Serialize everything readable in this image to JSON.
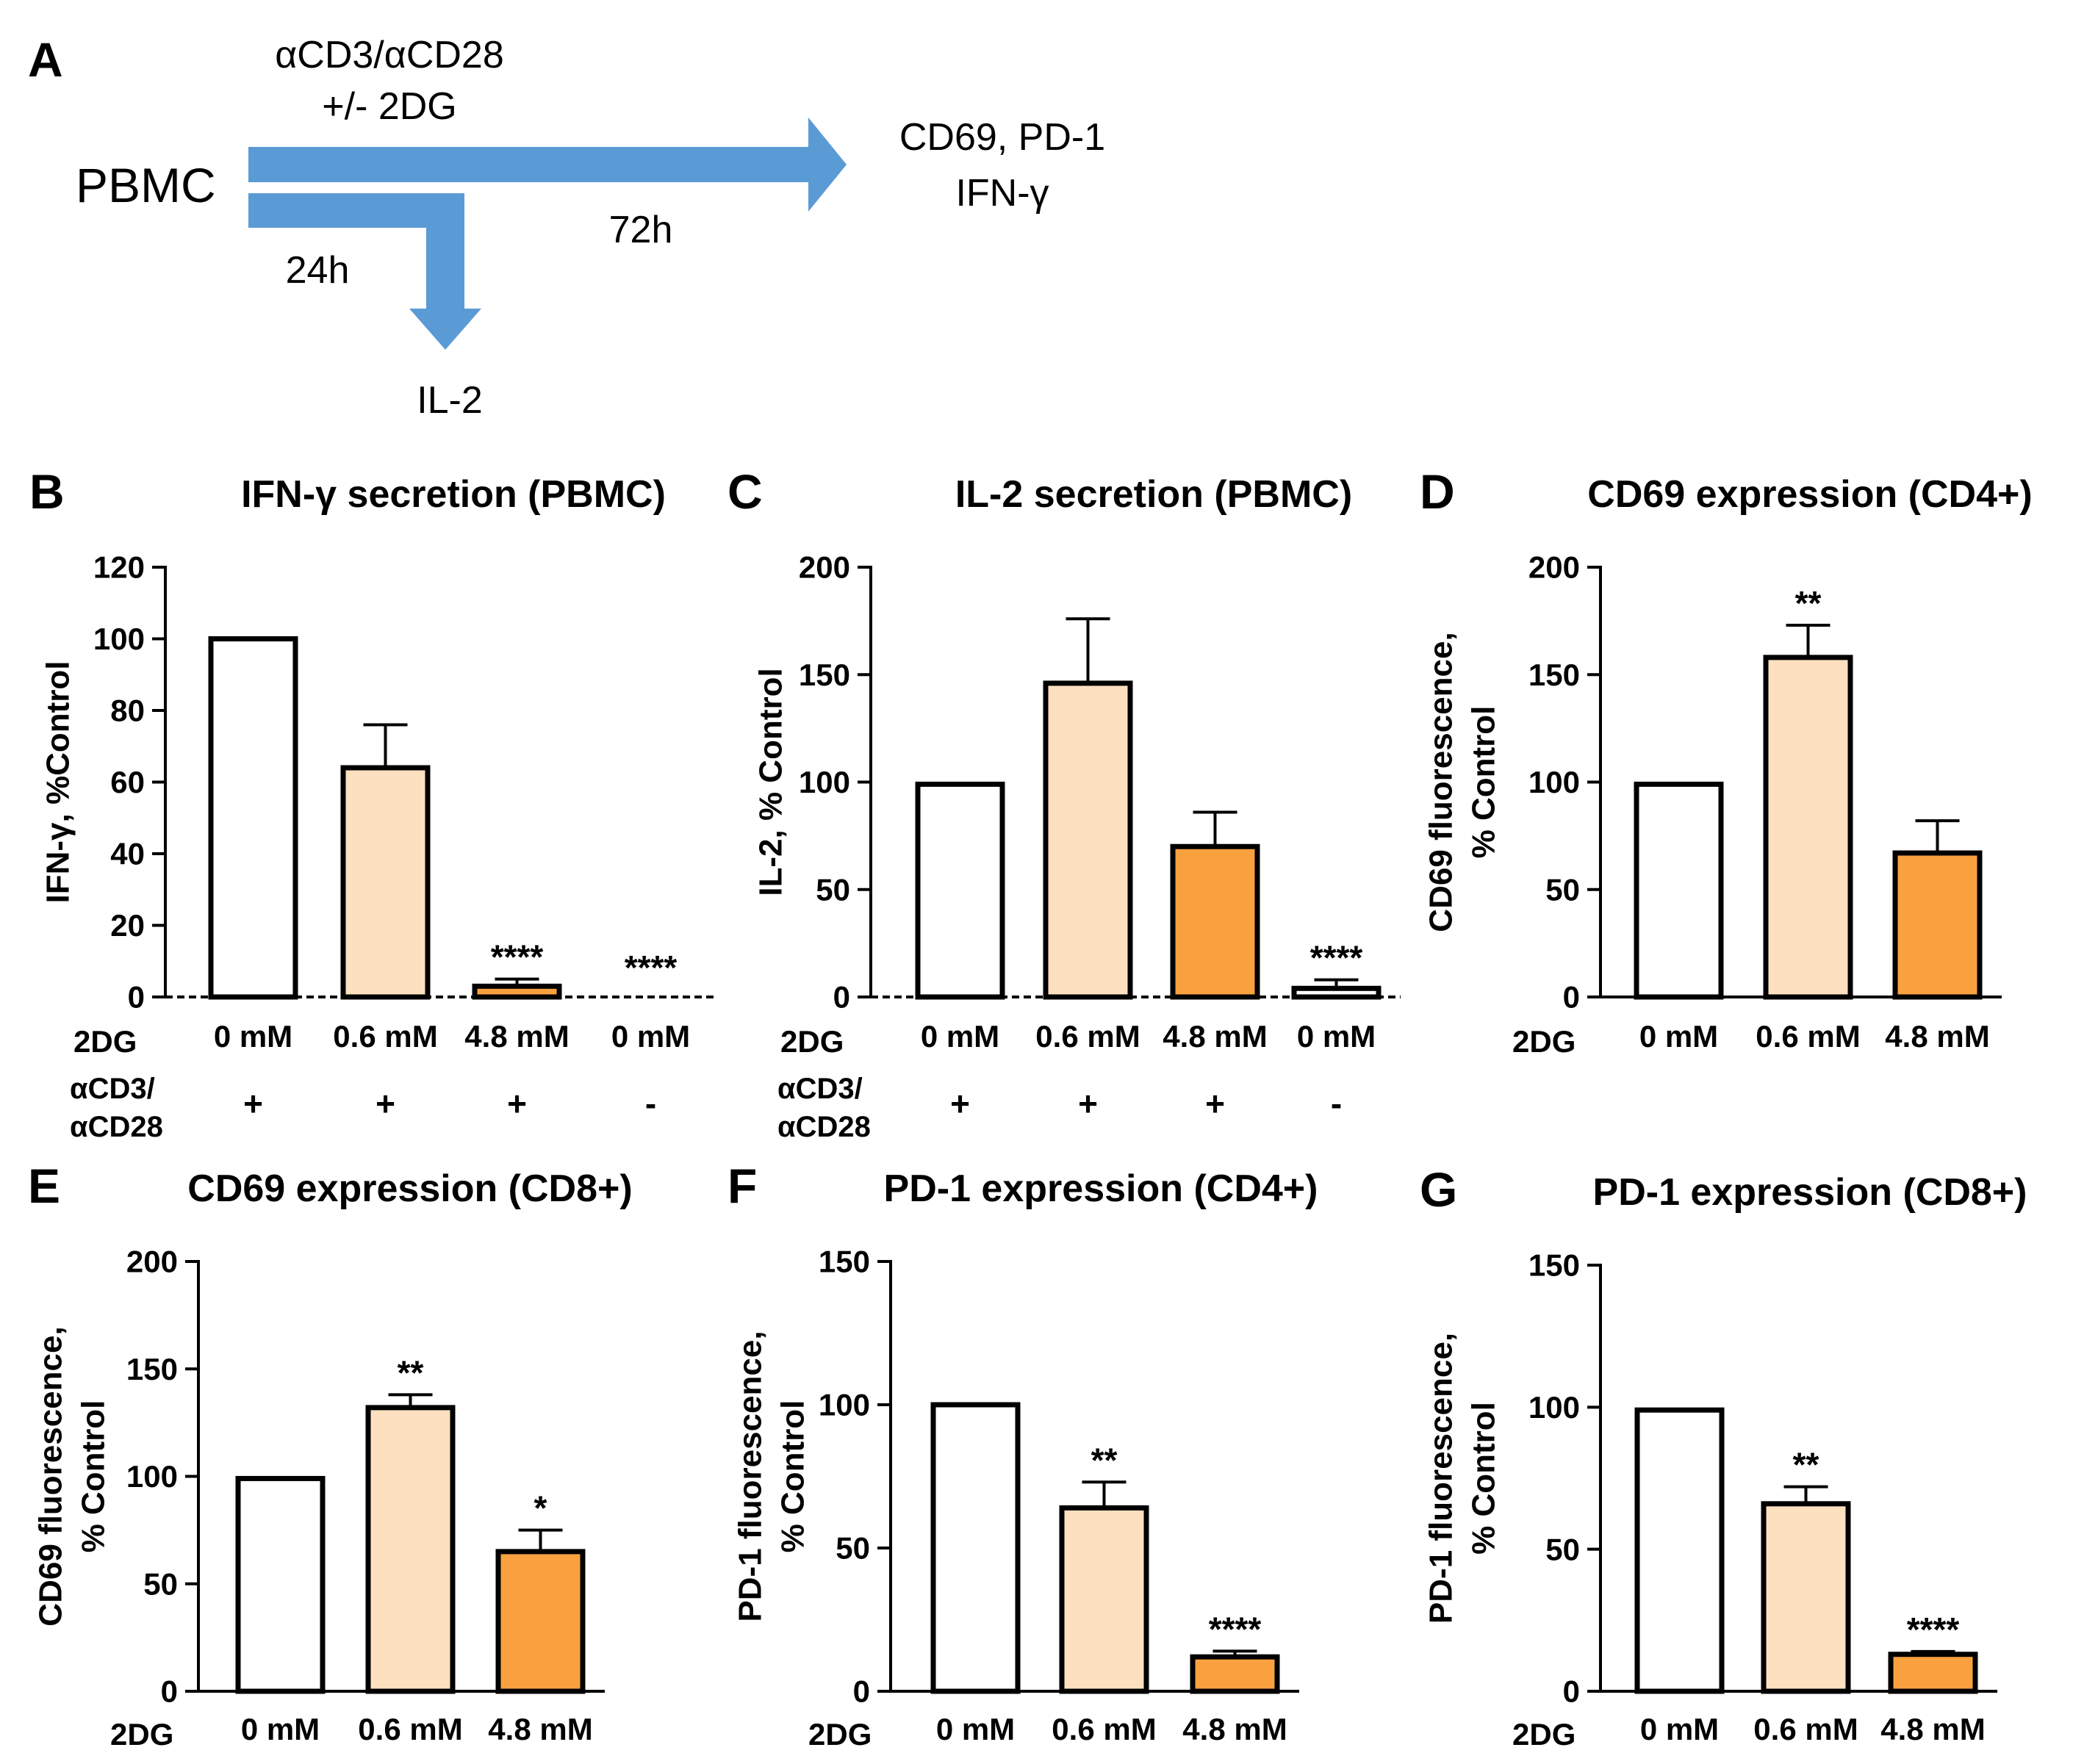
{
  "schematic": {
    "panel_letter": "A",
    "treatment_line1": "αCD3/αCD28",
    "treatment_line2": "+/- 2DG",
    "source": "PBMC",
    "time_long": "72h",
    "time_short": "24h",
    "readout_long_line1": "CD69, PD-1",
    "readout_long_line2": "IFN-γ",
    "readout_short": "IL-2",
    "arrow_color": "#5B9BD5"
  },
  "colors": {
    "control": "#ffffff",
    "low_dose": "#FDE0C0",
    "high_dose": "#F9A13F",
    "stroke": "#000000"
  },
  "chart_data": [
    {
      "panel": "B",
      "type": "bar",
      "title": "IFN-γ secretion (PBMC)",
      "ylabel": [
        "IFN-γ, %Control"
      ],
      "ylim": [
        0,
        120
      ],
      "yticks": [
        0,
        20,
        40,
        60,
        80,
        100,
        120
      ],
      "row_label": "2DG",
      "categories": [
        "0 mM",
        "0.6 mM",
        "4.8 mM",
        "0 mM"
      ],
      "stim_label": [
        "αCD3/",
        "αCD28"
      ],
      "stim": [
        "+",
        "+",
        "+",
        "-"
      ],
      "values": [
        100,
        64,
        3,
        0
      ],
      "errors": [
        0,
        12,
        2,
        0
      ],
      "significance": [
        "",
        "",
        "****",
        "****"
      ],
      "fills": [
        "control",
        "low_dose",
        "high_dose",
        "control"
      ],
      "baseline_dashed": true
    },
    {
      "panel": "C",
      "type": "bar",
      "title": "IL-2 secretion (PBMC)",
      "ylabel": [
        "IL-2, % Control"
      ],
      "ylim": [
        0,
        200
      ],
      "yticks": [
        0,
        50,
        100,
        150,
        200
      ],
      "row_label": "2DG",
      "categories": [
        "0 mM",
        "0.6 mM",
        "4.8 mM",
        "0 mM"
      ],
      "stim_label": [
        "αCD3/",
        "αCD28"
      ],
      "stim": [
        "+",
        "+",
        "+",
        "-"
      ],
      "values": [
        99,
        146,
        70,
        4
      ],
      "errors": [
        0,
        30,
        16,
        4
      ],
      "significance": [
        "",
        "",
        "",
        "****"
      ],
      "fills": [
        "control",
        "low_dose",
        "high_dose",
        "control"
      ],
      "baseline_dashed": true
    },
    {
      "panel": "D",
      "type": "bar",
      "title": "CD69 expression (CD4+)",
      "ylabel": [
        "CD69 fluorescence,",
        "% Control"
      ],
      "ylim": [
        0,
        200
      ],
      "yticks": [
        0,
        50,
        100,
        150,
        200
      ],
      "row_label": "2DG",
      "categories": [
        "0 mM",
        "0.6 mM",
        "4.8 mM"
      ],
      "values": [
        99,
        158,
        67
      ],
      "errors": [
        0,
        15,
        15
      ],
      "significance": [
        "",
        "**",
        ""
      ],
      "fills": [
        "control",
        "low_dose",
        "high_dose"
      ]
    },
    {
      "panel": "E",
      "type": "bar",
      "title": "CD69 expression (CD8+)",
      "ylabel": [
        "CD69 fluorescence,",
        "% Control"
      ],
      "ylim": [
        0,
        200
      ],
      "yticks": [
        0,
        50,
        100,
        150,
        200
      ],
      "row_label": "2DG",
      "categories": [
        "0 mM",
        "0.6 mM",
        "4.8 mM"
      ],
      "values": [
        99,
        132,
        65
      ],
      "errors": [
        0,
        6,
        10
      ],
      "significance": [
        "",
        "**",
        "*"
      ],
      "fills": [
        "control",
        "low_dose",
        "high_dose"
      ]
    },
    {
      "panel": "F",
      "type": "bar",
      "title": "PD-1 expression (CD4+)",
      "ylabel": [
        "PD-1 fluorescence,",
        "% Control"
      ],
      "ylim": [
        0,
        150
      ],
      "yticks": [
        0,
        50,
        100,
        150
      ],
      "row_label": "2DG",
      "categories": [
        "0 mM",
        "0.6 mM",
        "4.8 mM"
      ],
      "values": [
        100,
        64,
        12
      ],
      "errors": [
        0,
        9,
        2
      ],
      "significance": [
        "",
        "**",
        "****"
      ],
      "fills": [
        "control",
        "low_dose",
        "high_dose"
      ]
    },
    {
      "panel": "G",
      "type": "bar",
      "title": "PD-1 expression (CD8+)",
      "ylabel": [
        "PD-1 fluorescence,",
        "% Control"
      ],
      "ylim": [
        0,
        150
      ],
      "yticks": [
        0,
        50,
        100,
        150
      ],
      "row_label": "2DG",
      "categories": [
        "0 mM",
        "0.6 mM",
        "4.8 mM"
      ],
      "values": [
        99,
        66,
        13
      ],
      "errors": [
        0,
        6,
        1
      ],
      "significance": [
        "",
        "**",
        "****"
      ],
      "fills": [
        "control",
        "low_dose",
        "high_dose"
      ]
    }
  ]
}
